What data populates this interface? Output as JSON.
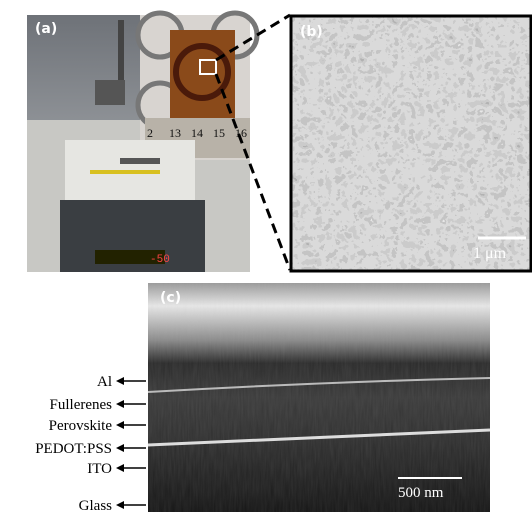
{
  "panels": {
    "a": {
      "label": "(a)",
      "ruler": [
        "2",
        "13",
        "14",
        "15",
        "16"
      ],
      "display": "-50"
    },
    "b": {
      "label": "(b)",
      "scale": "1 μm"
    },
    "c": {
      "label": "(c)",
      "scale": "500 nm",
      "layers": [
        "Al",
        "Fullerenes",
        "Perovskite",
        "PEDOT:PSS",
        "ITO",
        "Glass"
      ]
    }
  }
}
